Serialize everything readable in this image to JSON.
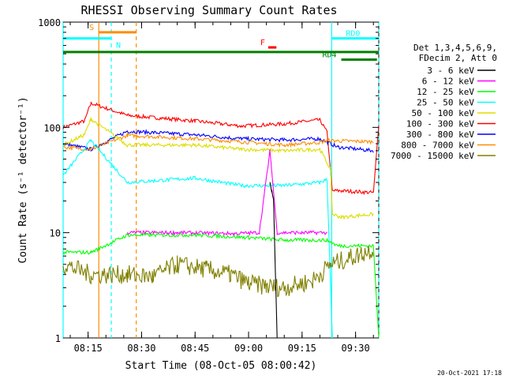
{
  "chart_data": {
    "type": "line",
    "title": "RHESSI Observing Summary Count Rates",
    "xlabel": "Start Time (08-Oct-05 08:00:42)",
    "ylabel": "Count Rate (s⁻¹ detector⁻¹)",
    "y_scale": "log",
    "ylim": [
      1,
      1000
    ],
    "xlim_minutes": [
      8.0,
      96.5
    ],
    "x_ticks": [
      {
        "m": 15,
        "label": "08:15"
      },
      {
        "m": 30,
        "label": "08:30"
      },
      {
        "m": 45,
        "label": "08:45"
      },
      {
        "m": 60,
        "label": "09:00"
      },
      {
        "m": 75,
        "label": "09:15"
      },
      {
        "m": 90,
        "label": "09:30"
      }
    ],
    "y_ticks": [
      {
        "v": 1,
        "label": "1"
      },
      {
        "v": 10,
        "label": "10"
      },
      {
        "v": 100,
        "label": "100"
      },
      {
        "v": 1000,
        "label": "1000"
      }
    ],
    "legend_header": [
      "Det 1,3,4,5,6,9,",
      "FDecim 2, Att 0"
    ],
    "series": [
      {
        "name": "3 - 6 keV",
        "color": "#000000"
      },
      {
        "name": "6 - 12 keV",
        "color": "#ff00ff"
      },
      {
        "name": "12 - 25 keV",
        "color": "#00ff00"
      },
      {
        "name": "25 - 50 keV",
        "color": "#00ffff"
      },
      {
        "name": "50 - 100 keV",
        "color": "#dddd00"
      },
      {
        "name": "100 - 300 keV",
        "color": "#ff0000"
      },
      {
        "name": "300 - 800 keV",
        "color": "#0000ff"
      },
      {
        "name": "800 - 7000 keV",
        "color": "#ff8c00"
      },
      {
        "name": "7000 - 15000 keV",
        "color": "#808000"
      }
    ],
    "segments": [
      {
        "series": "100 - 300 keV",
        "points": [
          [
            8,
            100
          ],
          [
            14,
            115
          ],
          [
            15.8,
            170
          ],
          [
            26,
            130
          ],
          [
            45,
            115
          ],
          [
            58,
            103
          ],
          [
            70,
            108
          ],
          [
            80,
            118
          ],
          [
            82,
            90
          ],
          [
            83.5,
            25
          ],
          [
            86,
            25
          ],
          [
            95,
            24
          ],
          [
            96.5,
            105
          ]
        ]
      },
      {
        "series": "300 - 800 keV",
        "points": [
          [
            8,
            70
          ],
          [
            15.8,
            62
          ],
          [
            26,
            92
          ],
          [
            45,
            85
          ],
          [
            58,
            78
          ],
          [
            70,
            76
          ],
          [
            80,
            78
          ],
          [
            83,
            70
          ],
          [
            85,
            65
          ],
          [
            95,
            60
          ]
        ]
      },
      {
        "series": "800 - 7000 keV",
        "points": [
          [
            8,
            65
          ],
          [
            15.8,
            62
          ],
          [
            26,
            84
          ],
          [
            45,
            78
          ],
          [
            58,
            73
          ],
          [
            70,
            68
          ],
          [
            80,
            72
          ],
          [
            82,
            75
          ],
          [
            95,
            73
          ]
        ]
      },
      {
        "series": "50 - 100 keV",
        "points": [
          [
            8,
            68
          ],
          [
            14,
            85
          ],
          [
            15.8,
            120
          ],
          [
            26,
            68
          ],
          [
            45,
            68
          ],
          [
            58,
            62
          ],
          [
            70,
            60
          ],
          [
            80,
            62
          ],
          [
            83,
            40
          ],
          [
            83.5,
            15
          ],
          [
            86,
            14
          ],
          [
            95,
            15
          ]
        ]
      },
      {
        "series": "25 - 50 keV",
        "points": [
          [
            8,
            35
          ],
          [
            15.8,
            75
          ],
          [
            26,
            30
          ],
          [
            45,
            33
          ],
          [
            58,
            28
          ],
          [
            70,
            28
          ],
          [
            80,
            30
          ],
          [
            82,
            32
          ],
          [
            83.5,
            0
          ]
        ]
      },
      {
        "series": "6 - 12 keV",
        "points": [
          [
            26,
            10
          ],
          [
            40,
            10
          ],
          [
            56,
            9.8
          ],
          [
            63,
            10
          ],
          [
            66,
            60
          ],
          [
            68,
            10
          ],
          [
            75,
            10
          ],
          [
            82,
            10
          ]
        ]
      },
      {
        "series": "12 - 25 keV",
        "points": [
          [
            8,
            6.5
          ],
          [
            15.8,
            6.5
          ],
          [
            26,
            9.5
          ],
          [
            45,
            9.5
          ],
          [
            60,
            9
          ],
          [
            70,
            8.5
          ],
          [
            82,
            8.5
          ],
          [
            85,
            7.5
          ],
          [
            95,
            7.5
          ],
          [
            96.5,
            1
          ]
        ]
      },
      {
        "series": "7000 - 15000 keV",
        "points": [
          [
            8,
            5
          ],
          [
            15.8,
            4
          ],
          [
            26,
            4
          ],
          [
            33,
            3.8
          ],
          [
            40,
            5
          ],
          [
            48,
            4.5
          ],
          [
            55,
            4
          ],
          [
            60,
            3.3
          ],
          [
            65,
            3.1
          ],
          [
            70,
            3
          ],
          [
            78,
            3.5
          ],
          [
            83,
            5
          ],
          [
            90,
            6
          ],
          [
            95,
            7
          ]
        ]
      },
      {
        "series": "3 - 6 keV",
        "points": [
          [
            66,
            30
          ],
          [
            66.5,
            25
          ],
          [
            67,
            20
          ],
          [
            68,
            1
          ]
        ]
      }
    ],
    "time_markers": [
      {
        "m": 8.0,
        "color": "#00ffff",
        "style": "solid"
      },
      {
        "m": 18.0,
        "color": "#ff8c00",
        "style": "solid"
      },
      {
        "m": 21.5,
        "color": "#00ffff",
        "style": "dashed"
      },
      {
        "m": 28.5,
        "color": "#ff8c00",
        "style": "dashed"
      },
      {
        "m": 83.3,
        "color": "#00ffff",
        "style": "solid"
      },
      {
        "m": 96.5,
        "color": "#00ffff",
        "style": "dashed"
      }
    ],
    "flag_bars": [
      {
        "label": "S",
        "color": "#ff8c00",
        "x0": 18.0,
        "x1": 28.5,
        "y": 800
      },
      {
        "label": "N",
        "color": "#00ffff",
        "x0": 8.0,
        "x1": 21.5,
        "y": 700
      },
      {
        "label": "F",
        "color": "#ff0000",
        "x0": 65.5,
        "x1": 67.8,
        "y": 575
      },
      {
        "label": "RD0",
        "color": "#00ffff",
        "x0": 83.3,
        "x1": 96.5,
        "y": 700
      },
      {
        "label": "",
        "color": "#008000",
        "x0": 8.0,
        "x1": 96.5,
        "y": 520
      },
      {
        "label": "RD4",
        "color": "#008000",
        "x0": 86.0,
        "x1": 96.0,
        "y": 440
      }
    ],
    "footer_date": "20-Oct-2021 17:18"
  }
}
